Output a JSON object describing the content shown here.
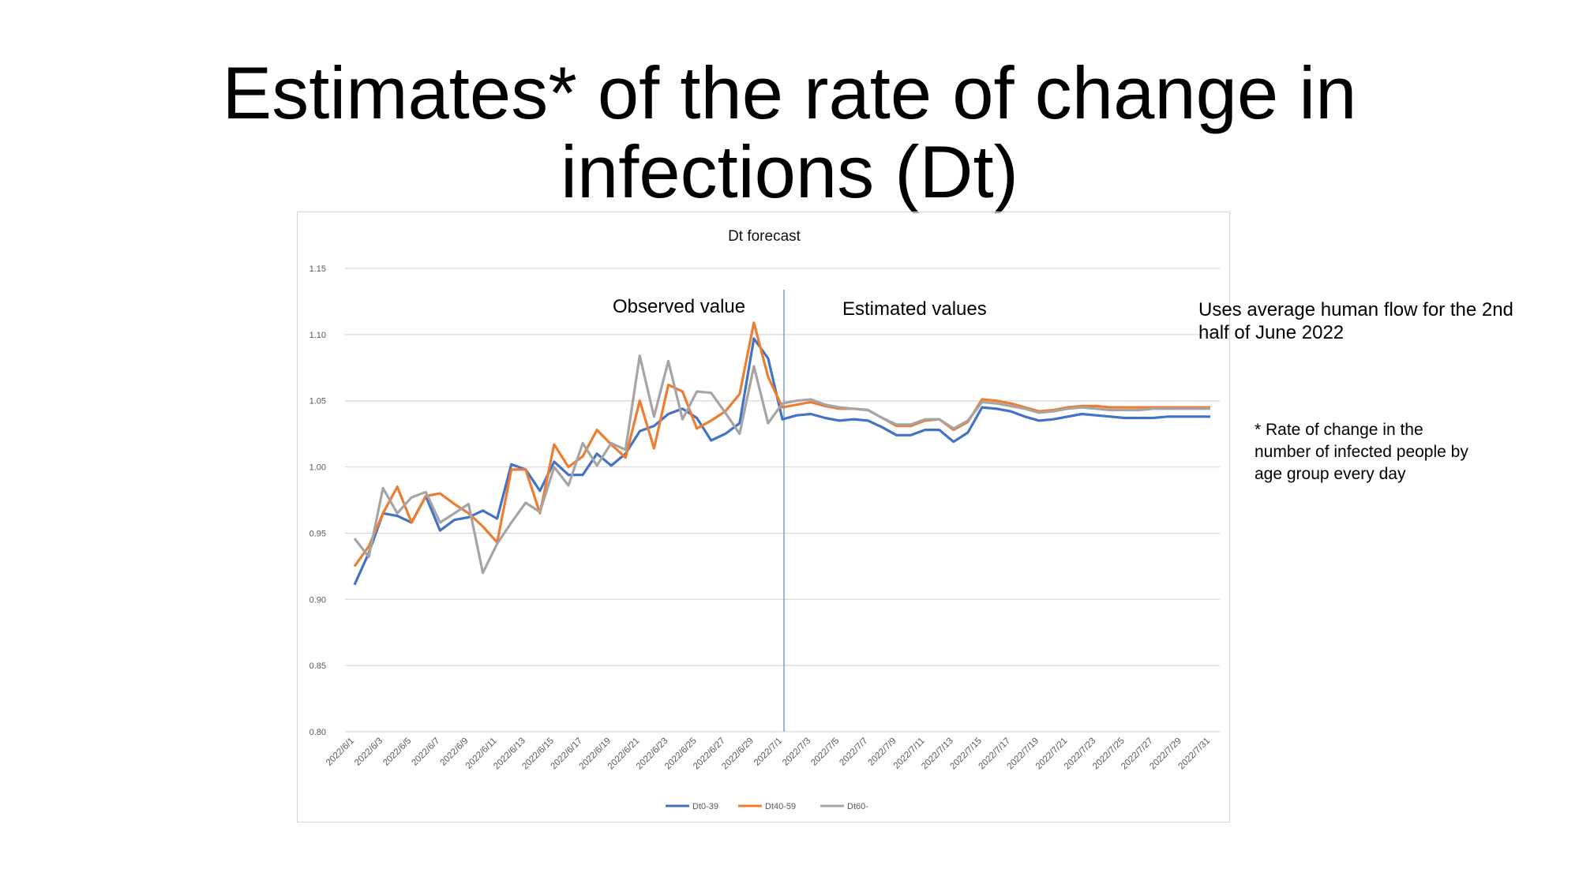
{
  "slide": {
    "title_line1": "Estimates* of the rate of change in",
    "title_line2": "infections (Dt)"
  },
  "annotations": {
    "observed": "Observed value",
    "estimated": "Estimated values",
    "human_flow_line1": "Uses average human flow for the 2nd",
    "human_flow_line2": "half of June 2022",
    "footnote_line1": "* Rate of change in the",
    "footnote_line2": "number of infected people by",
    "footnote_line3": "age group every day"
  },
  "chart_data": {
    "type": "line",
    "title": "Dt forecast",
    "ylim": [
      0.8,
      1.15
    ],
    "yticks": [
      "0.80",
      "0.85",
      "0.90",
      "0.95",
      "1.00",
      "1.05",
      "1.10",
      "1.15"
    ],
    "grid": true,
    "legend_position": "bottom",
    "divider_after": "2022/7/1",
    "x": [
      "2022/6/1",
      "2022/6/2",
      "2022/6/3",
      "2022/6/4",
      "2022/6/5",
      "2022/6/6",
      "2022/6/7",
      "2022/6/8",
      "2022/6/9",
      "2022/6/10",
      "2022/6/11",
      "2022/6/12",
      "2022/6/13",
      "2022/6/14",
      "2022/6/15",
      "2022/6/16",
      "2022/6/17",
      "2022/6/18",
      "2022/6/19",
      "2022/6/20",
      "2022/6/21",
      "2022/6/22",
      "2022/6/23",
      "2022/6/24",
      "2022/6/25",
      "2022/6/26",
      "2022/6/27",
      "2022/6/28",
      "2022/6/29",
      "2022/6/30",
      "2022/7/1",
      "2022/7/2",
      "2022/7/3",
      "2022/7/4",
      "2022/7/5",
      "2022/7/6",
      "2022/7/7",
      "2022/7/8",
      "2022/7/9",
      "2022/7/10",
      "2022/7/11",
      "2022/7/12",
      "2022/7/13",
      "2022/7/14",
      "2022/7/15",
      "2022/7/16",
      "2022/7/17",
      "2022/7/18",
      "2022/7/19",
      "2022/7/20",
      "2022/7/21",
      "2022/7/22",
      "2022/7/23",
      "2022/7/24",
      "2022/7/25",
      "2022/7/26",
      "2022/7/27",
      "2022/7/28",
      "2022/7/29",
      "2022/7/30",
      "2022/7/31"
    ],
    "x_tick_labels": [
      "2022/6/1",
      "",
      "2022/6/3",
      "",
      "2022/6/5",
      "",
      "2022/6/7",
      "",
      "2022/6/9",
      "",
      "2022/6/11",
      "",
      "2022/6/13",
      "",
      "2022/6/15",
      "",
      "2022/6/17",
      "",
      "2022/6/19",
      "",
      "2022/6/21",
      "",
      "2022/6/23",
      "",
      "2022/6/25",
      "",
      "2022/6/27",
      "",
      "2022/6/29",
      "",
      "2022/7/1",
      "",
      "2022/7/3",
      "",
      "2022/7/5",
      "",
      "2022/7/7",
      "",
      "2022/7/9",
      "",
      "2022/7/11",
      "",
      "2022/7/13",
      "",
      "2022/7/15",
      "",
      "2022/7/17",
      "",
      "2022/7/19",
      "",
      "2022/7/21",
      "",
      "2022/7/23",
      "",
      "2022/7/25",
      "",
      "2022/7/27",
      "",
      "2022/7/29",
      "",
      "2022/7/31"
    ],
    "series": [
      {
        "name": "Dt0-39",
        "color": "#4472c4",
        "values": [
          0.911,
          0.935,
          0.965,
          0.963,
          0.958,
          0.978,
          0.952,
          0.96,
          0.962,
          0.967,
          0.961,
          1.002,
          0.998,
          0.982,
          1.004,
          0.994,
          0.994,
          1.01,
          1.001,
          1.01,
          1.027,
          1.031,
          1.04,
          1.044,
          1.037,
          1.02,
          1.025,
          1.033,
          1.097,
          1.082,
          1.036,
          1.039,
          1.04,
          1.037,
          1.035,
          1.036,
          1.035,
          1.03,
          1.024,
          1.024,
          1.028,
          1.028,
          1.019,
          1.026,
          1.045,
          1.044,
          1.042,
          1.038,
          1.035,
          1.036,
          1.038,
          1.04,
          1.039,
          1.038,
          1.037,
          1.037,
          1.037,
          1.038,
          1.038,
          1.038,
          1.038
        ]
      },
      {
        "name": "Dt40-59",
        "color": "#ed7d31",
        "values": [
          0.925,
          0.94,
          0.965,
          0.985,
          0.958,
          0.978,
          0.98,
          0.972,
          0.965,
          0.955,
          0.943,
          0.998,
          0.998,
          0.965,
          1.017,
          1.0,
          1.008,
          1.028,
          1.017,
          1.007,
          1.05,
          1.014,
          1.062,
          1.057,
          1.029,
          1.035,
          1.042,
          1.055,
          1.109,
          1.068,
          1.045,
          1.047,
          1.049,
          1.046,
          1.044,
          1.044,
          1.043,
          1.037,
          1.031,
          1.031,
          1.035,
          1.036,
          1.028,
          1.034,
          1.051,
          1.05,
          1.048,
          1.045,
          1.042,
          1.043,
          1.045,
          1.046,
          1.046,
          1.045,
          1.045,
          1.045,
          1.045,
          1.045,
          1.045,
          1.045,
          1.045
        ]
      },
      {
        "name": "Dt60-",
        "color": "#a5a5a5",
        "values": [
          0.946,
          0.932,
          0.984,
          0.965,
          0.977,
          0.981,
          0.958,
          0.965,
          0.972,
          0.92,
          0.942,
          0.958,
          0.973,
          0.966,
          1.0,
          0.986,
          1.018,
          1.001,
          1.018,
          1.013,
          1.084,
          1.038,
          1.08,
          1.036,
          1.057,
          1.056,
          1.041,
          1.025,
          1.076,
          1.033,
          1.048,
          1.05,
          1.051,
          1.047,
          1.045,
          1.044,
          1.043,
          1.037,
          1.032,
          1.032,
          1.036,
          1.036,
          1.029,
          1.035,
          1.049,
          1.048,
          1.046,
          1.044,
          1.041,
          1.042,
          1.044,
          1.045,
          1.044,
          1.043,
          1.043,
          1.043,
          1.044,
          1.044,
          1.044,
          1.044,
          1.044
        ]
      }
    ]
  }
}
